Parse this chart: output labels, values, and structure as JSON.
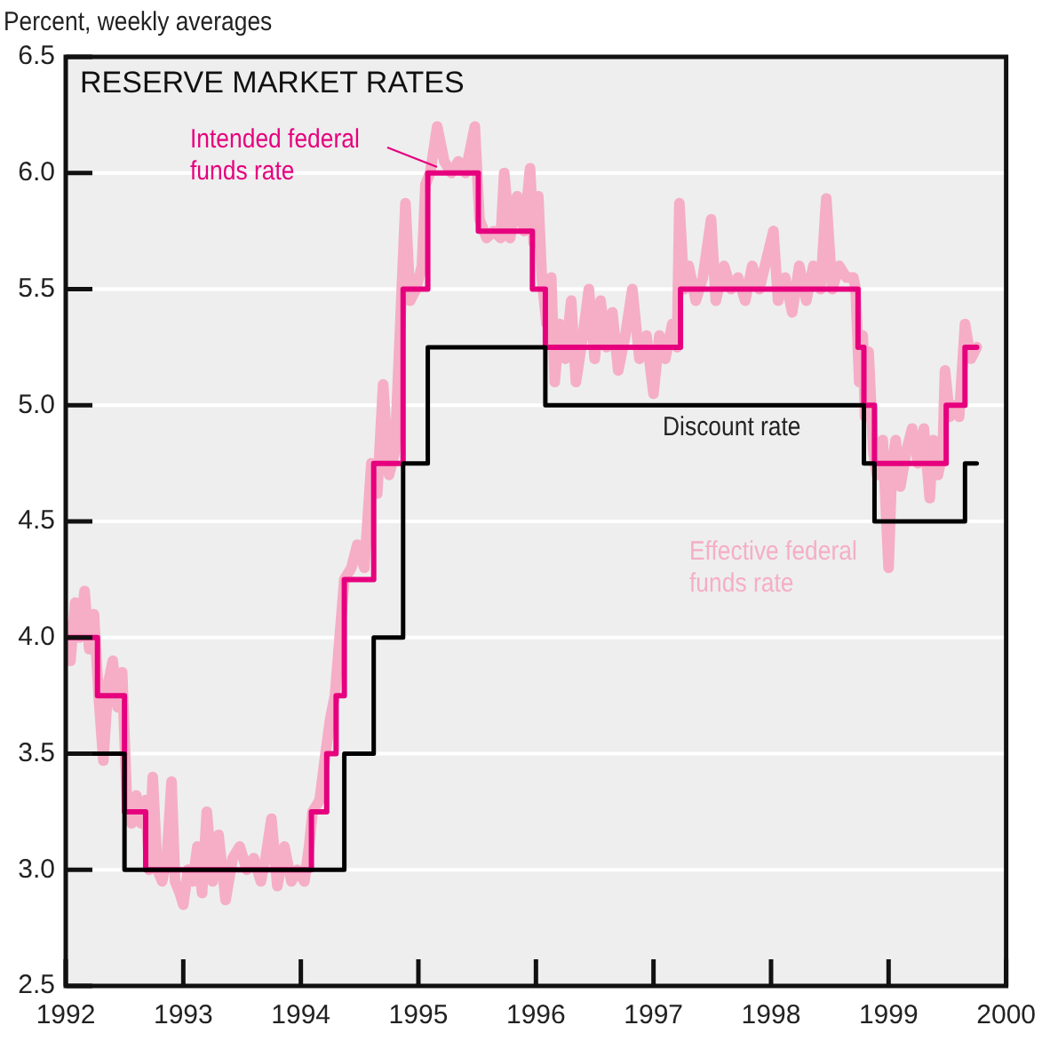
{
  "chart_data": {
    "type": "line",
    "title": "RESERVE MARKET RATES",
    "ylabel": "Percent, weekly averages",
    "xlim": [
      1992,
      2000
    ],
    "xticks": [
      1992,
      1993,
      1994,
      1995,
      1996,
      1997,
      1998,
      1999,
      2000
    ],
    "ylim": [
      2.5,
      6.5
    ],
    "yticks": [
      2.5,
      {
        "value": 3,
        "label": "3.0"
      },
      3.5,
      {
        "value": 4,
        "label": "4.0"
      },
      4.5,
      {
        "value": 5,
        "label": "5.0"
      },
      5.5,
      {
        "value": 6,
        "label": "6.0"
      },
      6.5
    ],
    "grid": "y",
    "marker": "none",
    "series": [
      {
        "name": "Effective federal funds rate",
        "color": "#f5aec6",
        "type": "line",
        "x": [
          1992.0,
          1992.04,
          1992.08,
          1992.12,
          1992.16,
          1992.2,
          1992.24,
          1992.28,
          1992.32,
          1992.36,
          1992.4,
          1992.44,
          1992.48,
          1992.52,
          1992.56,
          1992.6,
          1992.64,
          1992.68,
          1992.71,
          1992.74,
          1992.78,
          1992.82,
          1992.86,
          1992.9,
          1992.93,
          1992.97,
          1993.0,
          1993.04,
          1993.08,
          1993.12,
          1993.16,
          1993.2,
          1993.25,
          1993.3,
          1993.36,
          1993.42,
          1993.48,
          1993.54,
          1993.6,
          1993.66,
          1993.7,
          1993.75,
          1993.8,
          1993.86,
          1993.92,
          1993.97,
          1994.03,
          1994.07,
          1994.1,
          1994.16,
          1994.21,
          1994.25,
          1994.29,
          1994.33,
          1994.37,
          1994.43,
          1994.48,
          1994.54,
          1994.6,
          1994.65,
          1994.7,
          1994.75,
          1994.8,
          1994.85,
          1994.89,
          1994.93,
          1994.98,
          1995.03,
          1995.06,
          1995.1,
          1995.16,
          1995.22,
          1995.28,
          1995.34,
          1995.4,
          1995.48,
          1995.52,
          1995.58,
          1995.64,
          1995.7,
          1995.73,
          1995.78,
          1995.84,
          1995.9,
          1995.95,
          1995.98,
          1996.02,
          1996.05,
          1996.09,
          1996.13,
          1996.16,
          1996.2,
          1996.25,
          1996.3,
          1996.34,
          1996.4,
          1996.45,
          1996.5,
          1996.55,
          1996.6,
          1996.65,
          1996.7,
          1996.76,
          1996.82,
          1996.88,
          1996.94,
          1997.0,
          1997.05,
          1997.1,
          1997.16,
          1997.2,
          1997.22,
          1997.26,
          1997.3,
          1997.36,
          1997.42,
          1997.49,
          1997.53,
          1997.6,
          1997.66,
          1997.72,
          1997.78,
          1997.84,
          1997.9,
          1998.02,
          1998.06,
          1998.12,
          1998.18,
          1998.24,
          1998.3,
          1998.36,
          1998.42,
          1998.47,
          1998.52,
          1998.58,
          1998.64,
          1998.7,
          1998.72,
          1998.75,
          1998.78,
          1998.8,
          1998.83,
          1998.87,
          1998.9,
          1998.95,
          1999.0,
          1999.03,
          1999.06,
          1999.1,
          1999.15,
          1999.2,
          1999.25,
          1999.3,
          1999.35,
          1999.38,
          1999.42,
          1999.46,
          1999.48,
          1999.52,
          1999.57,
          1999.6,
          1999.65,
          1999.7,
          1999.75
        ],
        "values": [
          4.05,
          3.9,
          4.15,
          4.0,
          4.2,
          3.95,
          4.1,
          3.75,
          3.47,
          3.8,
          3.9,
          3.7,
          3.85,
          3.3,
          3.2,
          3.32,
          3.2,
          3.3,
          3.0,
          3.4,
          3.0,
          2.95,
          3.05,
          3.38,
          2.95,
          2.9,
          2.85,
          3.0,
          2.95,
          3.1,
          2.9,
          3.25,
          2.95,
          3.15,
          2.87,
          3.05,
          3.1,
          3.0,
          3.05,
          2.95,
          3.05,
          3.22,
          2.93,
          3.1,
          2.95,
          3.0,
          2.95,
          3.1,
          3.25,
          3.3,
          3.5,
          3.65,
          3.75,
          4.0,
          4.25,
          4.3,
          4.4,
          4.3,
          4.75,
          4.62,
          5.09,
          4.7,
          4.8,
          5.4,
          5.87,
          5.45,
          5.5,
          5.6,
          5.95,
          6.0,
          6.2,
          6.05,
          6.0,
          6.05,
          6.0,
          6.2,
          5.8,
          5.72,
          5.75,
          5.72,
          6.0,
          5.72,
          5.9,
          5.75,
          6.02,
          5.7,
          5.9,
          5.55,
          5.35,
          5.55,
          5.1,
          5.35,
          5.2,
          5.45,
          5.1,
          5.3,
          5.5,
          5.2,
          5.45,
          5.25,
          5.4,
          5.15,
          5.3,
          5.5,
          5.2,
          5.3,
          5.05,
          5.3,
          5.2,
          5.35,
          5.25,
          5.87,
          5.5,
          5.6,
          5.45,
          5.55,
          5.8,
          5.45,
          5.6,
          5.5,
          5.55,
          5.45,
          5.6,
          5.5,
          5.75,
          5.45,
          5.55,
          5.4,
          5.6,
          5.45,
          5.6,
          5.5,
          5.89,
          5.5,
          5.6,
          5.55,
          5.55,
          5.5,
          5.1,
          5.3,
          4.95,
          5.23,
          4.8,
          4.7,
          4.85,
          4.3,
          4.75,
          4.85,
          4.65,
          4.8,
          4.9,
          4.75,
          4.9,
          4.6,
          4.85,
          4.7,
          4.8,
          5.15,
          4.95,
          5.0,
          4.95,
          5.35,
          5.2,
          5.25
        ]
      },
      {
        "name": "Intended federal funds rate",
        "color": "#e6007e",
        "type": "step",
        "x": [
          1992.0,
          1992.27,
          1992.5,
          1992.68,
          1994.09,
          1994.22,
          1994.3,
          1994.37,
          1994.62,
          1994.87,
          1995.08,
          1995.51,
          1995.97,
          1996.08,
          1997.23,
          1998.74,
          1998.79,
          1998.88,
          1999.49,
          1999.65,
          1999.75
        ],
        "values": [
          4.0,
          3.75,
          3.25,
          3.0,
          3.25,
          3.5,
          3.75,
          4.25,
          4.75,
          5.5,
          6.0,
          5.75,
          5.5,
          5.25,
          5.5,
          5.25,
          5.0,
          4.75,
          5.0,
          5.25,
          5.25
        ]
      },
      {
        "name": "Discount rate",
        "color": "#000000",
        "type": "step",
        "x": [
          1992.0,
          1992.5,
          1994.37,
          1994.62,
          1994.87,
          1995.08,
          1996.08,
          1998.79,
          1998.88,
          1999.65,
          1999.75
        ],
        "values": [
          3.5,
          3.0,
          3.5,
          4.0,
          4.75,
          5.25,
          5.0,
          4.75,
          4.5,
          4.75,
          4.75
        ]
      }
    ]
  }
}
